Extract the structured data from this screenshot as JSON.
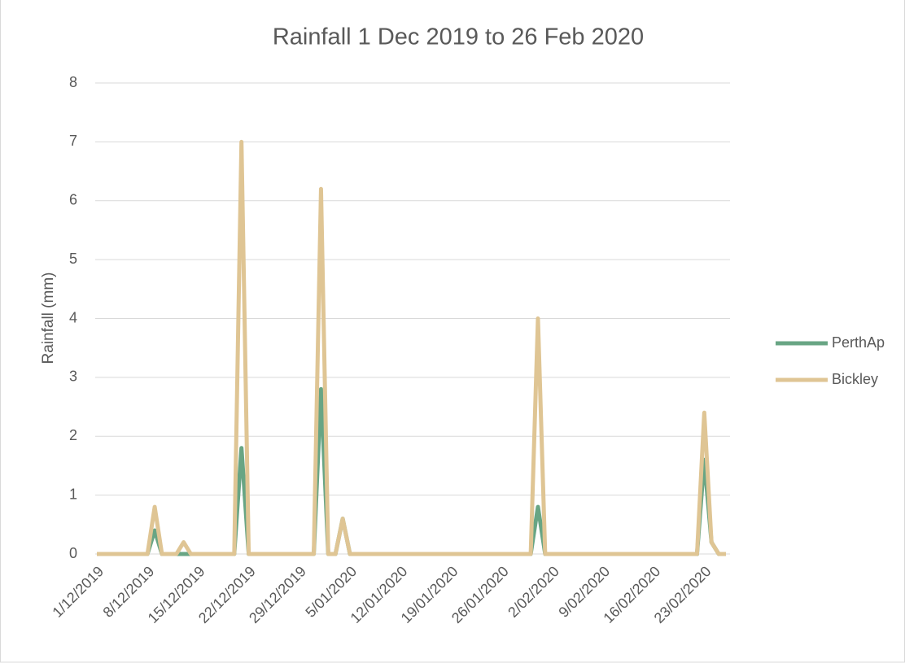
{
  "chart_data": {
    "type": "line",
    "title": "Rainfall 1 Dec 2019 to 26 Feb 2020",
    "y_label": "Rainfall (mm)",
    "categories": [
      "1/12/2019",
      null,
      null,
      null,
      null,
      null,
      null,
      "8/12/2019",
      null,
      null,
      null,
      null,
      null,
      null,
      "15/12/2019",
      null,
      null,
      null,
      null,
      null,
      null,
      "22/12/2019",
      null,
      null,
      null,
      null,
      null,
      null,
      "29/12/2019",
      null,
      null,
      null,
      null,
      null,
      null,
      "5/01/2020",
      null,
      null,
      null,
      null,
      null,
      null,
      "12/01/2020",
      null,
      null,
      null,
      null,
      null,
      null,
      "19/01/2020",
      null,
      null,
      null,
      null,
      null,
      null,
      "26/01/2020",
      null,
      null,
      null,
      null,
      null,
      null,
      "2/02/2020",
      null,
      null,
      null,
      null,
      null,
      null,
      "9/02/2020",
      null,
      null,
      null,
      null,
      null,
      null,
      "16/02/2020",
      null,
      null,
      null,
      null,
      null,
      null,
      "23/02/2020",
      null,
      null,
      null
    ],
    "series": [
      {
        "name": "PerthAp",
        "color": "#68a584",
        "values": [
          0,
          0,
          0,
          0,
          0,
          0,
          0,
          0,
          0.4,
          0,
          0,
          0,
          0,
          0,
          0,
          0,
          0,
          0,
          0,
          0,
          1.8,
          0,
          0,
          0,
          0,
          0,
          0,
          0,
          0,
          0,
          0,
          2.8,
          0,
          0,
          0.6,
          0,
          0,
          0,
          0,
          0,
          0,
          0,
          0,
          0,
          0,
          0,
          0,
          0,
          0,
          0,
          0,
          0,
          0,
          0,
          0,
          0,
          0,
          0,
          0,
          0,
          0,
          0.8,
          0,
          0,
          0,
          0,
          0,
          0,
          0,
          0,
          0,
          0,
          0,
          0,
          0,
          0,
          0,
          0,
          0,
          0,
          0,
          0,
          0,
          0,
          1.6,
          0.2,
          0,
          0
        ]
      },
      {
        "name": "Bickley",
        "color": "#dfc594",
        "values": [
          0,
          0,
          0,
          0,
          0,
          0,
          0,
          0,
          0.8,
          0,
          0,
          0,
          0.2,
          0,
          0,
          0,
          0,
          0,
          0,
          0,
          7,
          0,
          0,
          0,
          0,
          0,
          0,
          0,
          0,
          0,
          0,
          6.2,
          0,
          0,
          0.6,
          0,
          0,
          0,
          0,
          0,
          0,
          0,
          0,
          0,
          0,
          0,
          0,
          0,
          0,
          0,
          0,
          0,
          0,
          0,
          0,
          0,
          0,
          0,
          0,
          0,
          0,
          4,
          0,
          0,
          0,
          0,
          0,
          0,
          0,
          0,
          0,
          0,
          0,
          0,
          0,
          0,
          0,
          0,
          0,
          0,
          0,
          0,
          0,
          0,
          2.4,
          0.2,
          0,
          0
        ]
      }
    ],
    "ylim": [
      0,
      8
    ],
    "yticks": [
      0,
      1,
      2,
      3,
      4,
      5,
      6,
      7,
      8
    ],
    "grid": true,
    "legend": "right"
  }
}
